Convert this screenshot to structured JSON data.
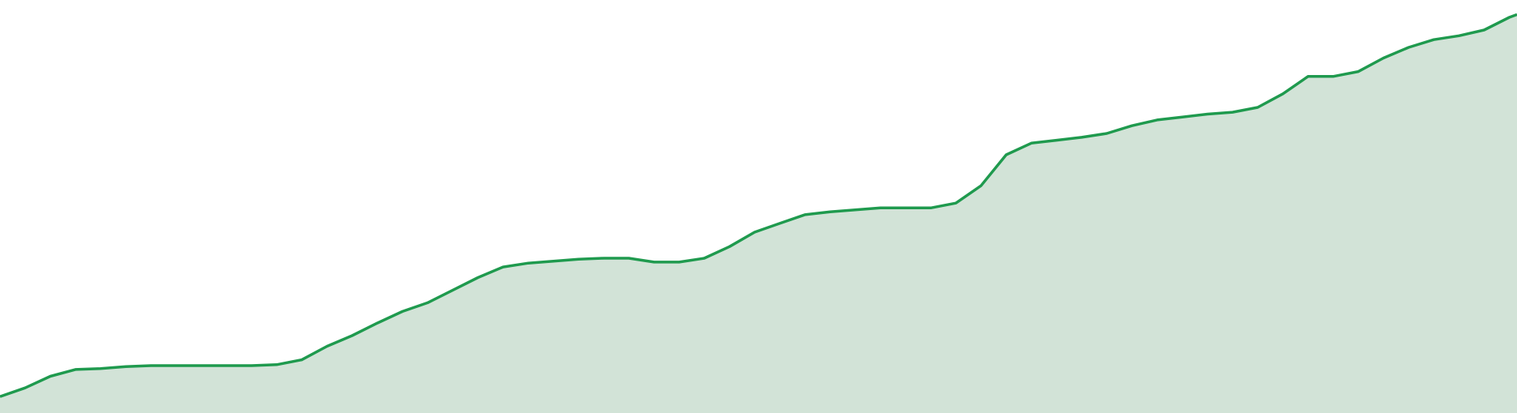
{
  "chart_data": {
    "type": "area",
    "x": [
      0,
      26,
      52,
      78,
      104,
      130,
      156,
      182,
      208,
      234,
      260,
      286,
      312,
      338,
      364,
      390,
      416,
      442,
      468,
      494,
      520,
      546,
      572,
      598,
      624,
      650,
      676,
      702,
      728,
      754,
      780,
      806,
      832,
      858,
      884,
      910,
      936,
      962,
      988,
      1014,
      1040,
      1066,
      1092,
      1118,
      1144,
      1170,
      1196,
      1222,
      1248,
      1274,
      1300,
      1326,
      1352,
      1378,
      1404,
      1430,
      1456,
      1482,
      1508,
      1534,
      1560,
      1568
    ],
    "values": [
      17,
      26,
      38,
      45,
      46,
      48,
      49,
      49,
      49,
      49,
      49,
      50,
      55,
      69,
      80,
      93,
      105,
      114,
      127,
      140,
      151,
      155,
      157,
      159,
      160,
      160,
      156,
      156,
      160,
      172,
      187,
      196,
      205,
      208,
      210,
      212,
      212,
      212,
      217,
      235,
      267,
      279,
      282,
      285,
      289,
      297,
      303,
      306,
      309,
      311,
      316,
      330,
      348,
      348,
      353,
      367,
      378,
      386,
      390,
      396,
      409,
      412
    ],
    "xlim": [
      0,
      1568
    ],
    "ylim": [
      0,
      427
    ],
    "color": "#1f9a4e",
    "fill": "#d2e3d7"
  }
}
